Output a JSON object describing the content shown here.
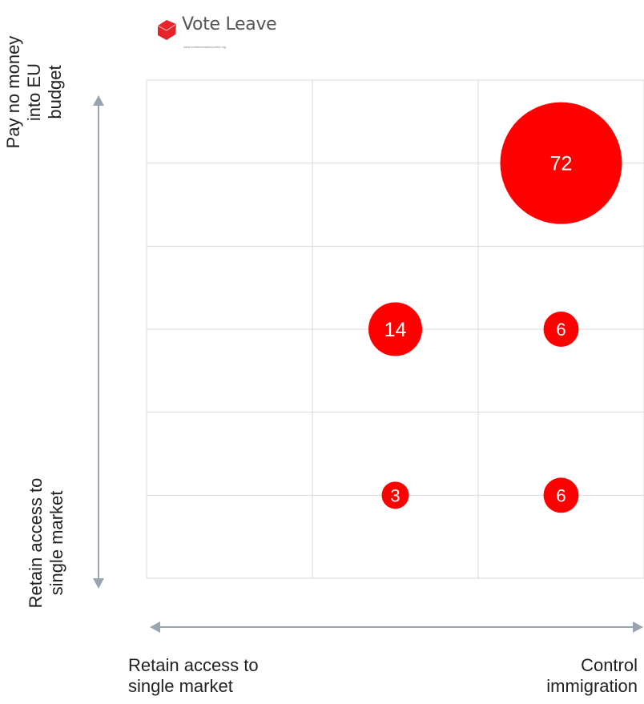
{
  "logo": {
    "name": "Vote Leave",
    "url": "www.voteleavetakecontrol.org",
    "color": "#e8242a"
  },
  "chart_data": {
    "type": "scatter",
    "title": "",
    "grid": true,
    "grid_columns": 3,
    "grid_rows": 6,
    "y_axis": {
      "top_label": [
        "Pay no money",
        "into EU",
        "budget"
      ],
      "bottom_label": [
        "Retain access to",
        "single market"
      ]
    },
    "x_axis": {
      "left_label": [
        "Retain access to",
        "single market"
      ],
      "right_label": [
        "Control",
        "immigration"
      ]
    },
    "points": [
      {
        "x": 3,
        "y": 5,
        "value": 72
      },
      {
        "x": 2,
        "y": 3,
        "value": 14
      },
      {
        "x": 3,
        "y": 3,
        "value": 6
      },
      {
        "x": 2,
        "y": 1,
        "value": 3
      },
      {
        "x": 3,
        "y": 1,
        "value": 6
      }
    ],
    "bubble_color": "#ff0000",
    "label_color": "#ffffff",
    "axis_arrow_color": "#9aa3b0",
    "grid_color": "#d9d9d9"
  }
}
